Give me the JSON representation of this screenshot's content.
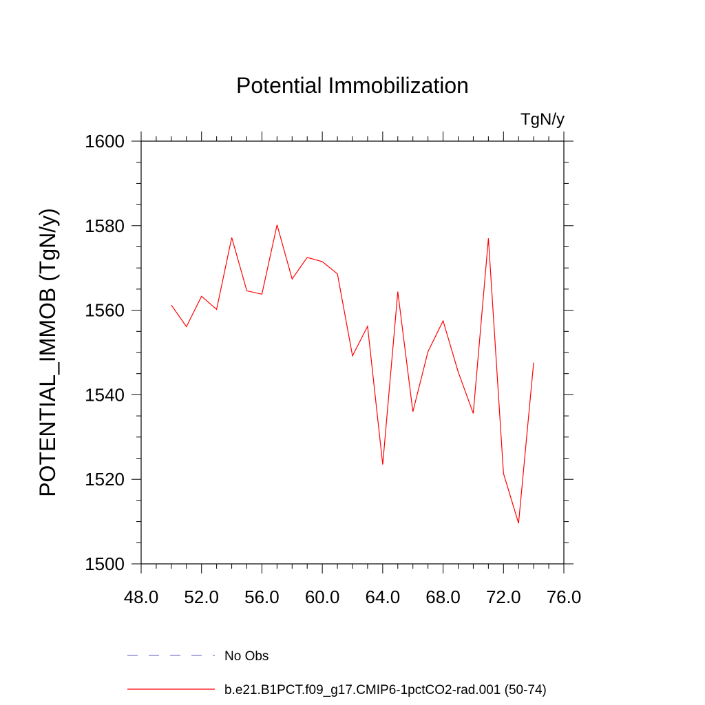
{
  "chart_data": {
    "type": "line",
    "title": "Potential Immobilization",
    "units_label": "TgN/y",
    "ylabel": "POTENTIAL_IMMOB  (TgN/y)",
    "xlabel": "",
    "xlim": [
      48,
      76
    ],
    "ylim": [
      1500,
      1600
    ],
    "x_ticks": [
      48,
      52,
      56,
      60,
      64,
      68,
      72,
      76
    ],
    "x_tick_labels": [
      "48.0",
      "52.0",
      "56.0",
      "60.0",
      "64.0",
      "68.0",
      "72.0",
      "76.0"
    ],
    "y_ticks": [
      1500,
      1520,
      1540,
      1560,
      1580,
      1600
    ],
    "y_tick_labels": [
      "1500",
      "1520",
      "1540",
      "1560",
      "1580",
      "1600"
    ],
    "grid": false,
    "legend_position": "bottom",
    "legend": [
      {
        "label": "No Obs",
        "color": "#7b7bd0",
        "style": "dashed"
      },
      {
        "label": "b.e21.B1PCT.f09_g17.CMIP6-1pctCO2-rad.001 (50-74)",
        "color": "#ff0000",
        "style": "solid"
      }
    ],
    "series": [
      {
        "name": "b.e21.B1PCT.f09_g17.CMIP6-1pctCO2-rad.001 (50-74)",
        "color": "#ff0000",
        "x": [
          50,
          51,
          52,
          53,
          54,
          55,
          56,
          57,
          58,
          59,
          60,
          61,
          62,
          63,
          64,
          65,
          66,
          67,
          68,
          69,
          70,
          71,
          72,
          73,
          74
        ],
        "values": [
          1561.2,
          1556.1,
          1563.3,
          1560.2,
          1577.2,
          1564.6,
          1563.8,
          1580.2,
          1567.4,
          1572.5,
          1571.5,
          1568.6,
          1549.2,
          1556.2,
          1523.5,
          1564.4,
          1536.0,
          1550.2,
          1557.5,
          1545.4,
          1535.6,
          1577.0,
          1521.4,
          1509.6,
          1547.6
        ]
      }
    ]
  }
}
